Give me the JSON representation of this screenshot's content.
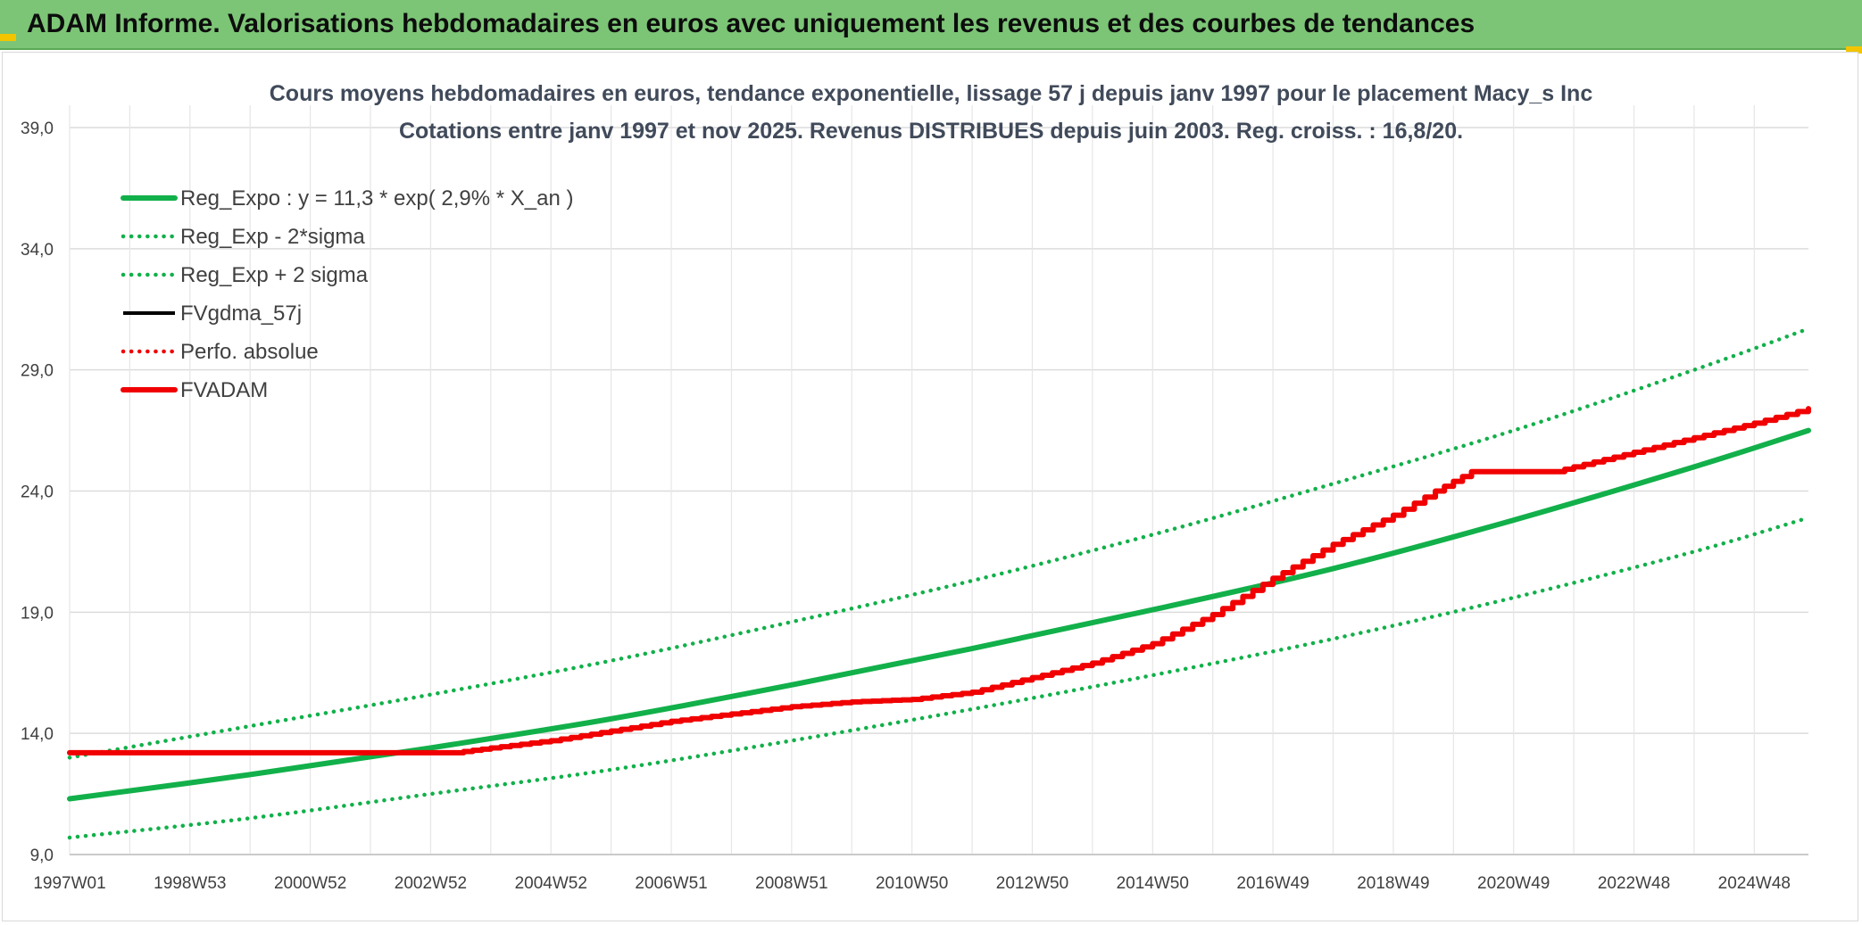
{
  "banner": {
    "title": "ADAM Informe. Valorisations hebdomadaires en euros avec uniquement les revenus et des courbes de tendances"
  },
  "colors": {
    "banner_bg": "#7cc576",
    "reg_green": "#12b04a",
    "fvadam_red": "#f00000",
    "fvgdma_black": "#000000",
    "grid": "#dcdcdc",
    "corner_accent": "#f2c500"
  },
  "chart_data": {
    "type": "line",
    "title": "Cours moyens hebdomadaires en euros, tendance exponentielle, lissage 57 j depuis janv 1997 pour le placement Macy_s Inc",
    "subtitle": "Cotations entre janv 1997 et nov 2025. Revenus DISTRIBUES depuis juin 2003. Reg. croiss. : 16,8/20.",
    "xlabel": "",
    "ylabel": "",
    "ylim": [
      9.0,
      39.0
    ],
    "yticks": [
      "39,0",
      "34,0",
      "29,0",
      "24,0",
      "19,0",
      "14,0",
      "9,0"
    ],
    "xlim": [
      1997.0,
      2025.9
    ],
    "xticks": [
      {
        "label": "1997W01",
        "year": 1997.0
      },
      {
        "label": "1998W53",
        "year": 1999.0
      },
      {
        "label": "2000W52",
        "year": 2001.0
      },
      {
        "label": "2002W52",
        "year": 2003.0
      },
      {
        "label": "2004W52",
        "year": 2005.0
      },
      {
        "label": "2006W51",
        "year": 2007.0
      },
      {
        "label": "2008W51",
        "year": 2009.0
      },
      {
        "label": "2010W50",
        "year": 2011.0
      },
      {
        "label": "2012W50",
        "year": 2013.0
      },
      {
        "label": "2014W50",
        "year": 2015.0
      },
      {
        "label": "2016W49",
        "year": 2017.0
      },
      {
        "label": "2018W49",
        "year": 2019.0
      },
      {
        "label": "2020W49",
        "year": 2021.0
      },
      {
        "label": "2022W48",
        "year": 2023.0
      },
      {
        "label": "2024W48",
        "year": 2025.0
      }
    ],
    "grid": true,
    "legend_position": "top-left",
    "series": [
      {
        "name": "Reg_Expo : y = 11,3 * exp( 2,9% *  X_an )",
        "style": "solid-thick",
        "color": "#12b04a",
        "points": [
          [
            1997.0,
            11.3
          ],
          [
            2000.0,
            12.3
          ],
          [
            2003.0,
            13.4
          ],
          [
            2006.0,
            14.6
          ],
          [
            2009.0,
            16.0
          ],
          [
            2012.0,
            17.5
          ],
          [
            2015.0,
            19.1
          ],
          [
            2018.0,
            20.8
          ],
          [
            2021.0,
            22.8
          ],
          [
            2024.0,
            25.0
          ],
          [
            2025.9,
            26.5
          ]
        ]
      },
      {
        "name": "Reg_Exp - 2*sigma",
        "style": "dotted",
        "color": "#12b04a",
        "points": [
          [
            1997.0,
            9.7
          ],
          [
            2000.0,
            10.5
          ],
          [
            2003.0,
            11.5
          ],
          [
            2006.0,
            12.5
          ],
          [
            2009.0,
            13.7
          ],
          [
            2012.0,
            15.0
          ],
          [
            2015.0,
            16.4
          ],
          [
            2018.0,
            17.9
          ],
          [
            2021.0,
            19.6
          ],
          [
            2024.0,
            21.5
          ],
          [
            2025.9,
            22.9
          ]
        ]
      },
      {
        "name": "Reg_Exp + 2 sigma",
        "style": "dotted",
        "color": "#12b04a",
        "points": [
          [
            1997.0,
            13.0
          ],
          [
            2000.0,
            14.3
          ],
          [
            2003.0,
            15.6
          ],
          [
            2006.0,
            17.0
          ],
          [
            2009.0,
            18.6
          ],
          [
            2012.0,
            20.3
          ],
          [
            2015.0,
            22.2
          ],
          [
            2018.0,
            24.3
          ],
          [
            2021.0,
            26.5
          ],
          [
            2024.0,
            29.0
          ],
          [
            2025.9,
            30.7
          ]
        ]
      },
      {
        "name": "FVgdma_57j",
        "style": "solid",
        "color": "#000000",
        "points": []
      },
      {
        "name": "Perfo. absolue",
        "style": "dotted",
        "color": "#f00000",
        "points": []
      },
      {
        "name": "FVADAM",
        "style": "solid-thick",
        "color": "#f00000",
        "points": [
          [
            1997.0,
            13.2
          ],
          [
            2003.4,
            13.2
          ],
          [
            2004.0,
            13.4
          ],
          [
            2005.0,
            13.7
          ],
          [
            2006.0,
            14.1
          ],
          [
            2007.0,
            14.5
          ],
          [
            2008.0,
            14.8
          ],
          [
            2009.0,
            15.1
          ],
          [
            2010.0,
            15.3
          ],
          [
            2011.0,
            15.4
          ],
          [
            2012.0,
            15.7
          ],
          [
            2013.0,
            16.3
          ],
          [
            2014.0,
            16.9
          ],
          [
            2015.0,
            17.7
          ],
          [
            2016.0,
            18.9
          ],
          [
            2017.0,
            20.4
          ],
          [
            2018.0,
            21.8
          ],
          [
            2019.0,
            23.0
          ],
          [
            2019.7,
            24.0
          ],
          [
            2020.3,
            24.8
          ],
          [
            2021.7,
            24.8
          ],
          [
            2022.0,
            25.0
          ],
          [
            2023.0,
            25.6
          ],
          [
            2024.0,
            26.2
          ],
          [
            2025.0,
            26.8
          ],
          [
            2025.9,
            27.4
          ]
        ]
      }
    ]
  }
}
